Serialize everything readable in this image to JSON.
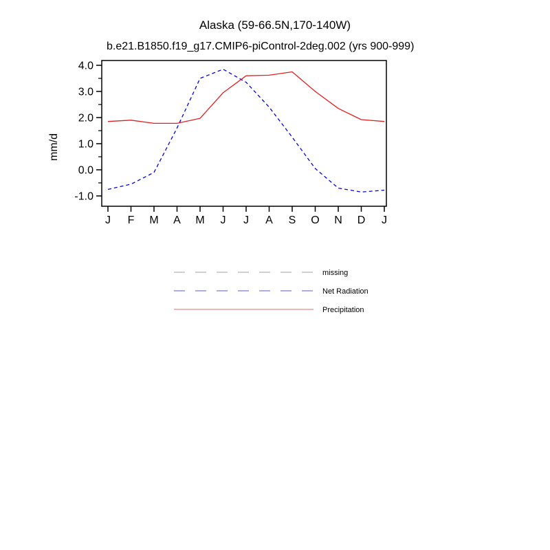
{
  "header": {
    "title": "Alaska (59-66.5N,170-140W)",
    "subtitle": "b.e21.B1850.f19_g17.CMIP6-piControl-2deg.002 (yrs 900-999)"
  },
  "chart_data": {
    "type": "line",
    "title": "Alaska (59-66.5N,170-140W)",
    "subtitle": "b.e21.B1850.f19_g17.CMIP6-piControl-2deg.002 (yrs 900-999)",
    "ylabel": "mm/d",
    "xlabel": "",
    "ylim": [
      -1.0,
      4.0
    ],
    "yticks": [
      4.0,
      3.0,
      2.0,
      1.0,
      0.0,
      -1.0
    ],
    "ytick_labels": [
      "4.0",
      "3.0",
      "2.0",
      "1.0",
      "0.0",
      "-1.0"
    ],
    "x_tick_labels": [
      "J",
      "F",
      "M",
      "A",
      "M",
      "J",
      "J",
      "A",
      "S",
      "O",
      "N",
      "D",
      "J"
    ],
    "grid": false,
    "frame_color": "#000000",
    "series": [
      {
        "name": "Net Radiation",
        "color": "#0000dd",
        "line_style": "dashed",
        "values": [
          -0.75,
          -0.55,
          -0.1,
          1.6,
          3.5,
          3.85,
          3.35,
          2.4,
          1.25,
          0.05,
          -0.7,
          -0.85,
          -0.78
        ]
      },
      {
        "name": "Precipitation",
        "color": "#e02020",
        "line_style": "solid",
        "values": [
          1.85,
          1.9,
          1.78,
          1.78,
          1.97,
          2.95,
          3.6,
          3.62,
          3.75,
          3.0,
          2.35,
          1.92,
          1.85
        ]
      }
    ],
    "legend": {
      "position": "below-plot",
      "entries": [
        {
          "label": "missing",
          "color": "#b4b4b4",
          "line_style": "dashed"
        },
        {
          "label": "Net Radiation",
          "color": "#7a7ad2",
          "line_style": "dashed"
        },
        {
          "label": "Precipitation",
          "color": "#ef8686",
          "line_style": "solid"
        }
      ]
    }
  }
}
